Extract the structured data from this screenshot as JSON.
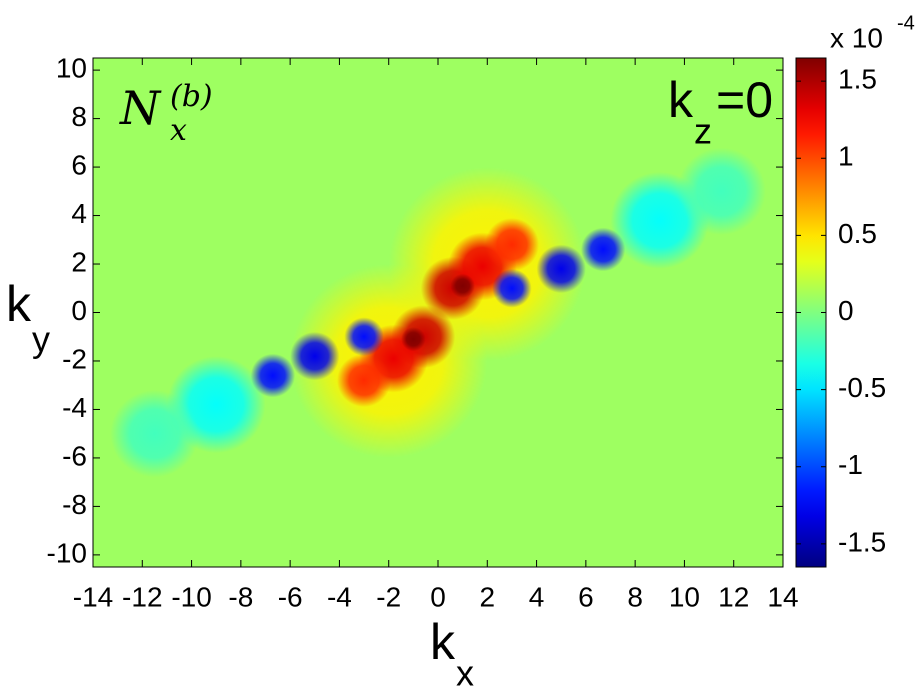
{
  "chart_data": {
    "type": "contour",
    "title": {
      "text": "N",
      "sub": "x",
      "sup": "(b)"
    },
    "annotation": {
      "text": "k",
      "sub": "z",
      "after": "=0"
    },
    "xlabel": {
      "text": "k",
      "sub": "x"
    },
    "ylabel": {
      "text": "k",
      "sub": "y"
    },
    "xlim": [
      -14,
      14
    ],
    "ylim": [
      -10.5,
      10.5
    ],
    "xticks": [
      -14,
      -12,
      -10,
      -8,
      -6,
      -4,
      -2,
      0,
      2,
      4,
      6,
      8,
      10,
      12,
      14
    ],
    "yticks": [
      -10,
      -8,
      -6,
      -4,
      -2,
      0,
      2,
      4,
      6,
      8,
      10
    ],
    "colormap": "jet",
    "clim": [
      -1.65,
      1.65
    ],
    "cticks": [
      -1.5,
      -1,
      -0.5,
      0,
      0.5,
      1,
      1.5
    ],
    "colorbar_label": {
      "text": "x 10",
      "sup": "-4"
    },
    "background_value": 0.1,
    "blobs": [
      {
        "x": 2,
        "y": 2,
        "r": 4,
        "value": 0.45
      },
      {
        "x": -2,
        "y": -2,
        "r": 4,
        "value": 0.45
      },
      {
        "x": 9,
        "y": 3.8,
        "r": 2,
        "value": -0.4
      },
      {
        "x": 11.5,
        "y": 5,
        "r": 1.8,
        "value": -0.2
      },
      {
        "x": -9,
        "y": -3.8,
        "r": 2,
        "value": -0.4
      },
      {
        "x": -11.5,
        "y": -5,
        "r": 1.8,
        "value": -0.2
      },
      {
        "x": 0.6,
        "y": 1,
        "r": 1.3,
        "value": 1.4
      },
      {
        "x": 1.8,
        "y": 1.9,
        "r": 1.4,
        "value": 1.3
      },
      {
        "x": 3,
        "y": 2.8,
        "r": 1.1,
        "value": 1.1
      },
      {
        "x": -0.6,
        "y": -1,
        "r": 1.3,
        "value": 1.4
      },
      {
        "x": -1.8,
        "y": -1.9,
        "r": 1.4,
        "value": 1.3
      },
      {
        "x": -3,
        "y": -2.8,
        "r": 1.1,
        "value": 1.1
      },
      {
        "x": 3,
        "y": 1,
        "r": 0.8,
        "value": -1.2
      },
      {
        "x": 5,
        "y": 1.8,
        "r": 1,
        "value": -1.3
      },
      {
        "x": 6.7,
        "y": 2.6,
        "r": 0.9,
        "value": -1.2
      },
      {
        "x": -3,
        "y": -1,
        "r": 0.8,
        "value": -1.2
      },
      {
        "x": -5,
        "y": -1.8,
        "r": 1,
        "value": -1.3
      },
      {
        "x": -6.7,
        "y": -2.6,
        "r": 0.9,
        "value": -1.2
      },
      {
        "x": 1,
        "y": 1.1,
        "r": 0.5,
        "value": 1.65
      },
      {
        "x": -1,
        "y": -1.1,
        "r": 0.5,
        "value": 1.65
      }
    ]
  }
}
